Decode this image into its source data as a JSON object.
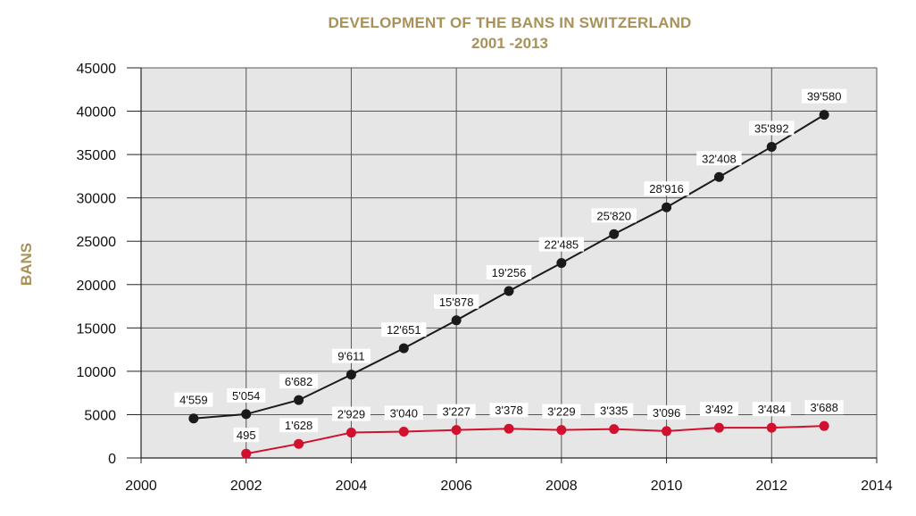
{
  "chart_data": {
    "type": "line",
    "title": "DEVELOPMENT OF THE BANS IN SWITZERLAND",
    "subtitle": "2001 -2013",
    "xlabel": "",
    "ylabel": "BANS",
    "xlim": [
      2000,
      2014
    ],
    "ylim": [
      0,
      45000
    ],
    "x_ticks": [
      "2000",
      "2002",
      "2004",
      "2006",
      "2008",
      "2010",
      "2012",
      "2014"
    ],
    "y_ticks": [
      "0",
      "5000",
      "10000",
      "15000",
      "20000",
      "25000",
      "30000",
      "35000",
      "40000",
      "45000"
    ],
    "grid": true,
    "series": [
      {
        "color": "#1a1a1a",
        "x": [
          2001,
          2002,
          2003,
          2004,
          2005,
          2006,
          2007,
          2008,
          2009,
          2010,
          2011,
          2012,
          2013
        ],
        "values": [
          4559,
          5054,
          6682,
          9611,
          12651,
          15878,
          19256,
          22485,
          25820,
          28916,
          32408,
          35892,
          39580
        ],
        "labels": [
          "4'559",
          "5'054",
          "6'682",
          "9'611",
          "12'651",
          "15'878",
          "19'256",
          "22'485",
          "25'820",
          "28'916",
          "32'408",
          "35'892",
          "39'580"
        ]
      },
      {
        "color": "#d0102e",
        "x": [
          2002,
          2003,
          2004,
          2005,
          2006,
          2007,
          2008,
          2009,
          2010,
          2011,
          2012,
          2013
        ],
        "values": [
          495,
          1628,
          2929,
          3040,
          3227,
          3378,
          3229,
          3335,
          3096,
          3492,
          3484,
          3688
        ],
        "labels": [
          "495",
          "1'628",
          "2'929",
          "3'040",
          "3'227",
          "3'378",
          "3'229",
          "3'335",
          "3'096",
          "3'492",
          "3'484",
          "3'688"
        ]
      }
    ]
  }
}
